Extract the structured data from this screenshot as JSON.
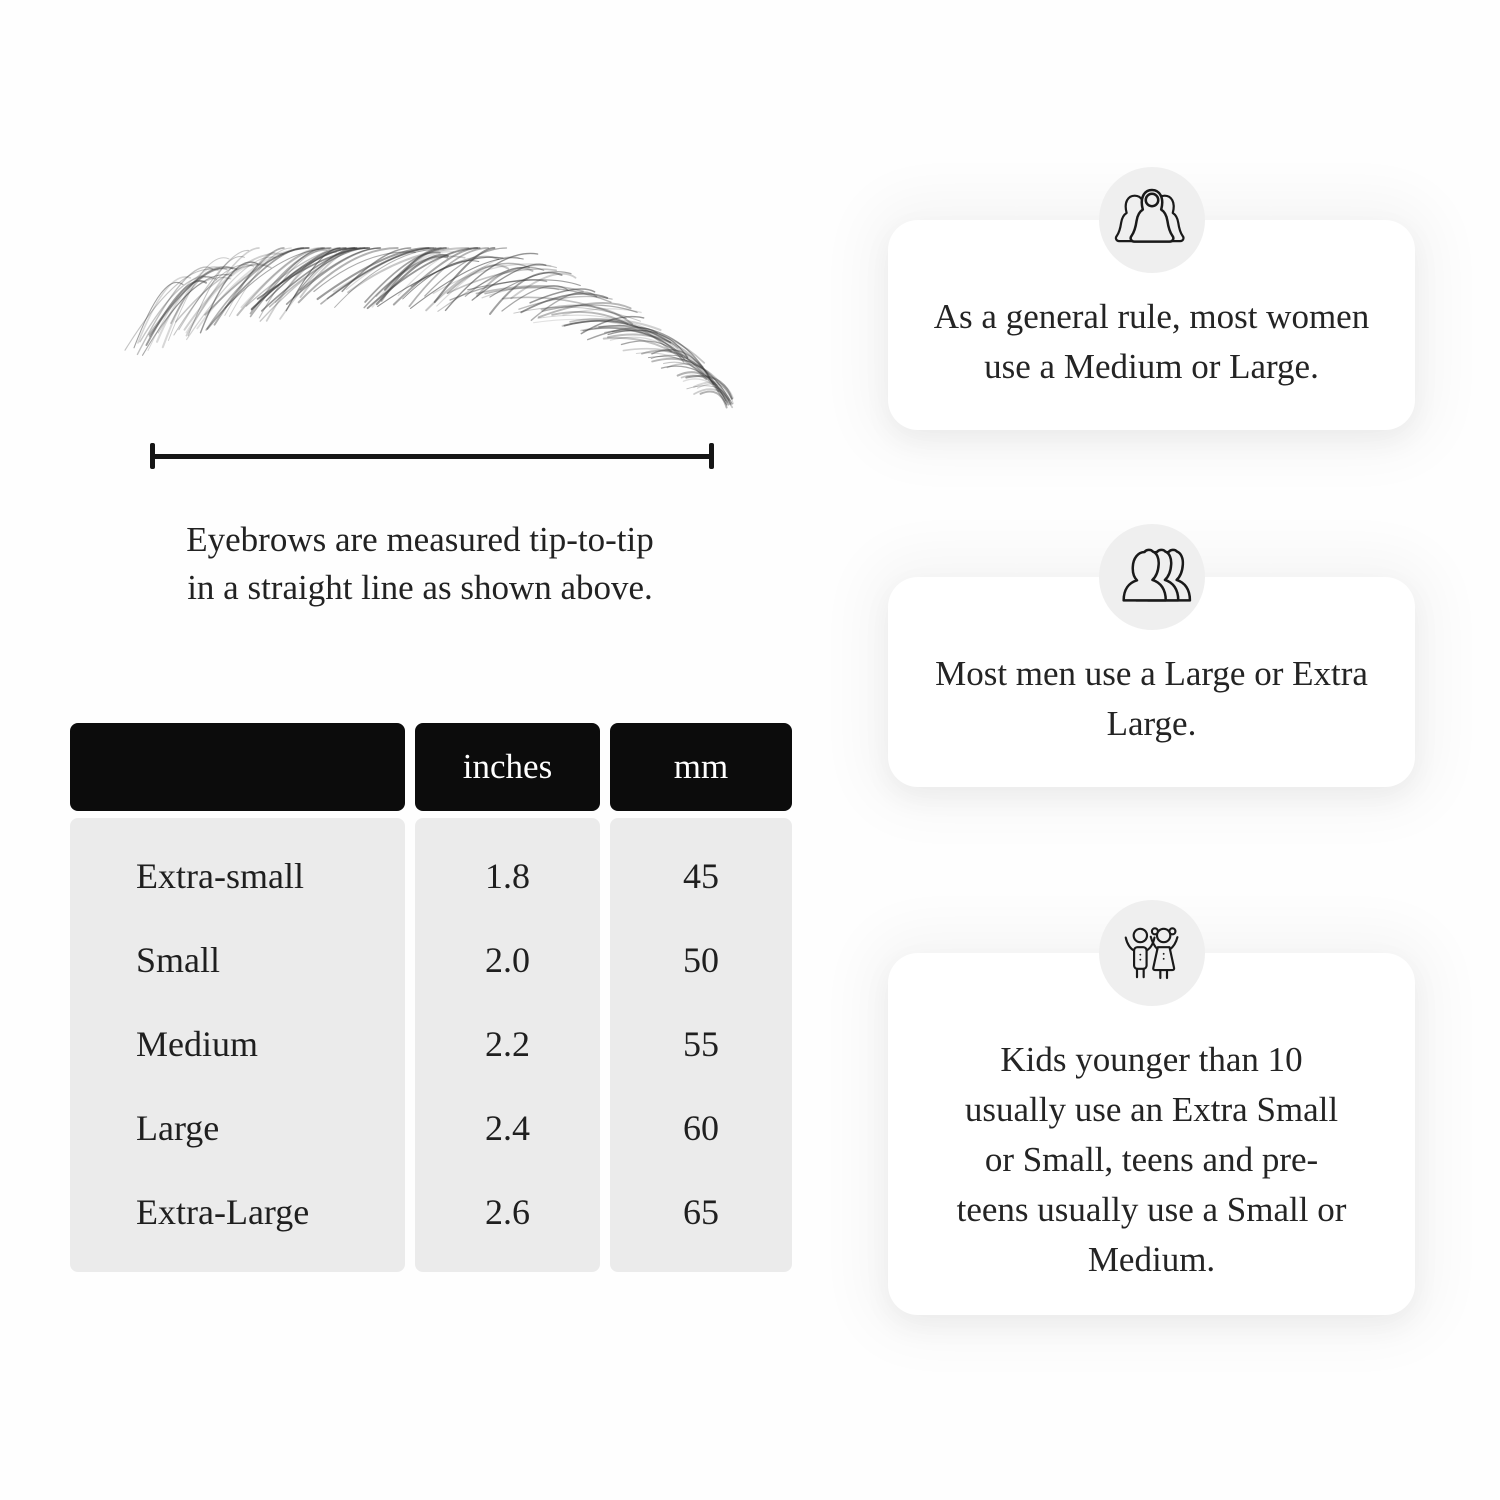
{
  "measurement": {
    "caption_line_1": "Eyebrows are measured tip-to-tip",
    "caption_line_2": "in a straight line as shown above."
  },
  "size_table": {
    "headers": {
      "size": "",
      "inches": "inches",
      "mm": "mm"
    },
    "rows": [
      {
        "label": "Extra-small",
        "inches": "1.8",
        "mm": "45"
      },
      {
        "label": "Small",
        "inches": "2.0",
        "mm": "50"
      },
      {
        "label": "Medium",
        "inches": "2.2",
        "mm": "55"
      },
      {
        "label": "Large",
        "inches": "2.4",
        "mm": "60"
      },
      {
        "label": "Extra-Large",
        "inches": "2.6",
        "mm": "65"
      }
    ]
  },
  "cards": [
    {
      "icon": "women-icon",
      "text": "As a general rule, most women use a Medium or Large."
    },
    {
      "icon": "men-icon",
      "text": "Most men use a Large or Extra Large."
    },
    {
      "icon": "kids-icon",
      "text": "Kids younger than 10 usually use an Extra Small or Small, teens and pre-teens usually use a Small or Medium."
    }
  ],
  "colors": {
    "table_header_bg": "#0c0c0c",
    "table_header_text": "#ffffff",
    "table_cell_bg": "#ebebeb",
    "icon_circle_bg": "#efefef",
    "card_bg": "#ffffff",
    "text": "#1c1c1c"
  }
}
